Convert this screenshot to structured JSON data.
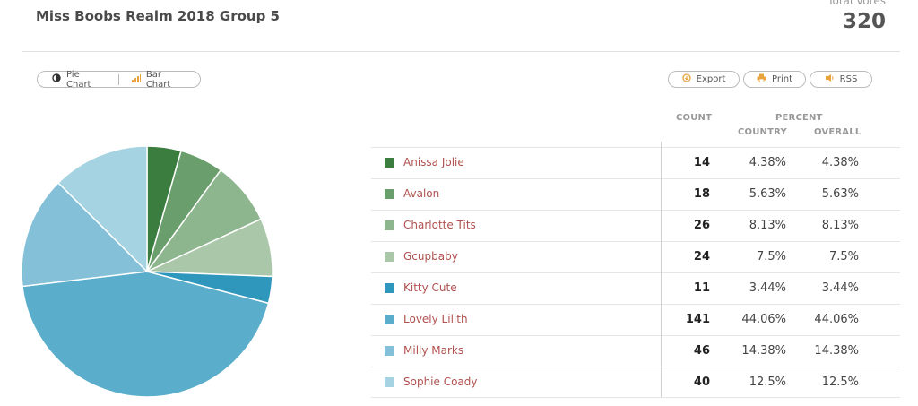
{
  "header": {
    "title": "Miss Boobs Realm 2018 Group 5",
    "total_label": "Total Votes",
    "total_value": "320"
  },
  "toolbar": {
    "pie_label": "Pie Chart",
    "bar_label": "Bar Chart",
    "export_label": "Export",
    "print_label": "Print",
    "rss_label": "RSS"
  },
  "table": {
    "count_header": "COUNT",
    "percent_header": "PERCENT",
    "country_header": "COUNTRY",
    "overall_header": "OVERALL",
    "rows": [
      {
        "name": "Anissa Jolie",
        "count": "14",
        "country": "4.38%",
        "overall": "4.38%"
      },
      {
        "name": "Avalon",
        "count": "18",
        "country": "5.63%",
        "overall": "5.63%"
      },
      {
        "name": "Charlotte Tits",
        "count": "26",
        "country": "8.13%",
        "overall": "8.13%"
      },
      {
        "name": "Gcupbaby",
        "count": "24",
        "country": "7.5%",
        "overall": "7.5%"
      },
      {
        "name": "Kitty Cute",
        "count": "11",
        "country": "3.44%",
        "overall": "3.44%"
      },
      {
        "name": "Lovely Lilith",
        "count": "141",
        "country": "44.06%",
        "overall": "44.06%"
      },
      {
        "name": "Milly Marks",
        "count": "46",
        "country": "14.38%",
        "overall": "14.38%"
      },
      {
        "name": "Sophie Coady",
        "count": "40",
        "country": "12.5%",
        "overall": "12.5%"
      }
    ]
  },
  "chart_data": {
    "type": "pie",
    "categories": [
      "Anissa Jolie",
      "Avalon",
      "Charlotte Tits",
      "Gcupbaby",
      "Kitty Cute",
      "Lovely Lilith",
      "Milly Marks",
      "Sophie Coady"
    ],
    "values": [
      14,
      18,
      26,
      24,
      11,
      141,
      46,
      40
    ],
    "colors": [
      "#3a7d3e",
      "#6a9e6c",
      "#8db58e",
      "#aac8a9",
      "#2f97bb",
      "#5aaecb",
      "#84c1d8",
      "#a6d3e2"
    ]
  }
}
